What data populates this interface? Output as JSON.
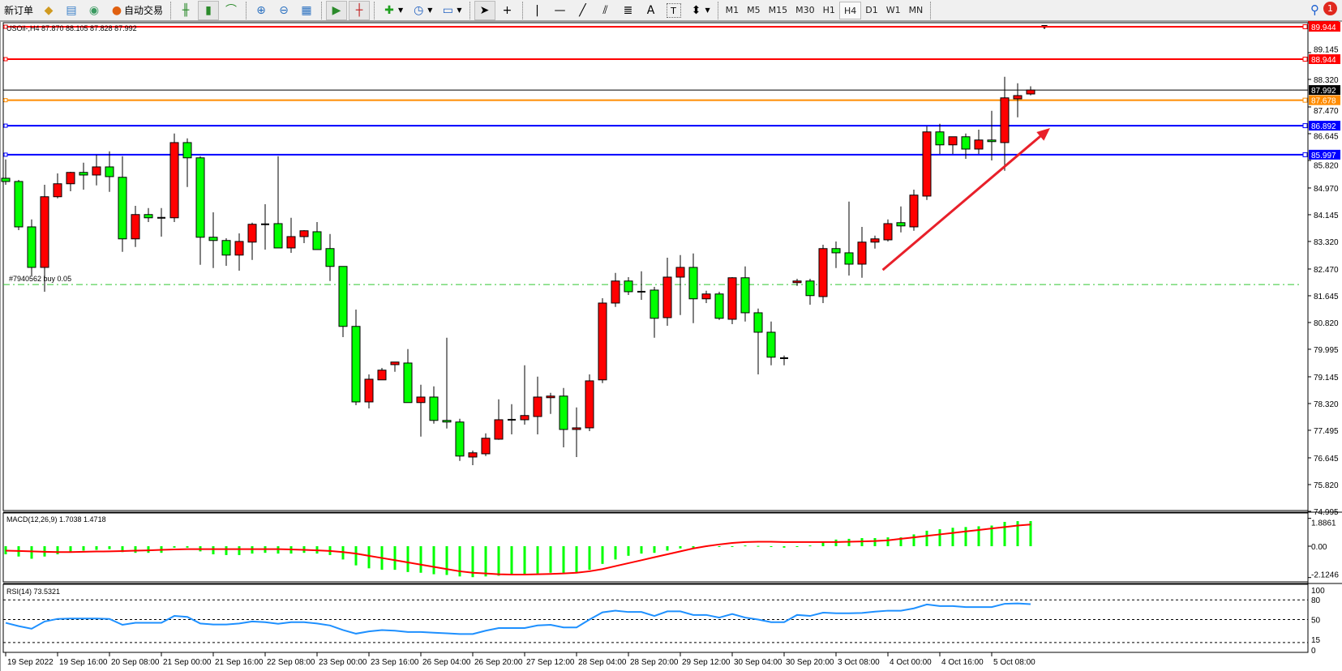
{
  "toolbar": {
    "new_order": "新订单",
    "auto_trading": "自动交易",
    "timeframes": [
      "M1",
      "M5",
      "M15",
      "M30",
      "H1",
      "H4",
      "D1",
      "W1",
      "MN"
    ],
    "active_timeframe": "H4",
    "notification_count": "1",
    "tools_text": [
      "A",
      "T"
    ]
  },
  "chart_header": "USOil-,H4  87.870 88.105 87.828 87.992",
  "order_label": "#7940562 buy 0.05",
  "colors": {
    "bull": "#ff0000",
    "bear": "#00ff00",
    "support": "#0000ff",
    "resistance": "#ff0000",
    "orange": "#ff8c00",
    "order": "#32c832",
    "rsi": "#1e90ff",
    "signal": "#ff0000"
  },
  "chart_data": [
    {
      "type": "candlestick",
      "symbol": "USOil-",
      "timeframe": "H4",
      "ohlc": [
        [
          85.27,
          85.85,
          85.07,
          85.17
        ],
        [
          85.17,
          85.22,
          83.67,
          83.77
        ],
        [
          83.77,
          84.0,
          82.27,
          82.52
        ],
        [
          82.52,
          85.07,
          81.77,
          84.7
        ],
        [
          84.7,
          85.42,
          84.65,
          85.1
        ],
        [
          85.1,
          85.47,
          84.87,
          85.45
        ],
        [
          85.45,
          85.75,
          84.92,
          85.37
        ],
        [
          85.37,
          85.99,
          85.05,
          85.62
        ],
        [
          85.62,
          86.1,
          84.85,
          85.32
        ],
        [
          85.3,
          85.95,
          83.0,
          83.4
        ],
        [
          83.4,
          84.42,
          83.15,
          84.15
        ],
        [
          84.15,
          84.35,
          83.92,
          84.05
        ],
        [
          84.05,
          84.35,
          83.47,
          84.05
        ],
        [
          84.05,
          86.65,
          83.92,
          86.37
        ],
        [
          86.37,
          86.5,
          85.0,
          85.9
        ],
        [
          85.9,
          85.95,
          82.6,
          83.45
        ],
        [
          83.45,
          84.22,
          82.5,
          83.35
        ],
        [
          83.35,
          83.42,
          82.57,
          82.9
        ],
        [
          82.9,
          83.57,
          82.42,
          83.32
        ],
        [
          83.3,
          83.9,
          82.75,
          83.85
        ],
        [
          83.85,
          84.47,
          83.07,
          83.85
        ],
        [
          83.87,
          85.95,
          83.12,
          83.12
        ],
        [
          83.12,
          84.05,
          82.97,
          83.47
        ],
        [
          83.47,
          83.67,
          83.27,
          83.65
        ],
        [
          83.62,
          83.92,
          83.07,
          83.07
        ],
        [
          83.1,
          83.55,
          82.1,
          82.55
        ],
        [
          82.55,
          82.55,
          80.37,
          80.7
        ],
        [
          80.7,
          81.22,
          78.27,
          78.37
        ],
        [
          78.37,
          79.22,
          78.17,
          79.07
        ],
        [
          79.05,
          79.42,
          79.05,
          79.35
        ],
        [
          79.52,
          79.6,
          79.3,
          79.6
        ],
        [
          79.57,
          80.0,
          78.35,
          78.35
        ],
        [
          78.35,
          78.9,
          77.3,
          78.52
        ],
        [
          78.52,
          78.85,
          77.7,
          77.8
        ],
        [
          77.8,
          80.35,
          77.55,
          77.75
        ],
        [
          77.75,
          77.85,
          76.55,
          76.7
        ],
        [
          76.67,
          76.87,
          76.42,
          76.8
        ],
        [
          76.77,
          77.4,
          76.7,
          77.25
        ],
        [
          77.22,
          78.45,
          77.2,
          77.82
        ],
        [
          77.82,
          78.3,
          77.37,
          77.82
        ],
        [
          77.82,
          79.5,
          77.67,
          77.95
        ],
        [
          77.92,
          79.15,
          77.37,
          78.52
        ],
        [
          78.5,
          78.65,
          78.0,
          78.55
        ],
        [
          78.55,
          78.8,
          76.97,
          77.52
        ],
        [
          77.52,
          78.2,
          76.67,
          77.57
        ],
        [
          77.57,
          79.22,
          77.47,
          79.02
        ],
        [
          79.05,
          81.57,
          78.95,
          81.42
        ],
        [
          81.42,
          82.35,
          81.3,
          82.1
        ],
        [
          82.1,
          82.22,
          81.67,
          81.77
        ],
        [
          81.77,
          82.4,
          81.52,
          81.77
        ],
        [
          81.82,
          81.92,
          80.35,
          80.95
        ],
        [
          80.97,
          82.82,
          80.72,
          82.22
        ],
        [
          82.22,
          82.9,
          81.05,
          82.52
        ],
        [
          82.52,
          82.95,
          80.8,
          81.55
        ],
        [
          81.55,
          81.8,
          81.42,
          81.7
        ],
        [
          81.7,
          81.77,
          80.9,
          80.95
        ],
        [
          80.92,
          82.22,
          80.77,
          82.2
        ],
        [
          82.2,
          82.55,
          80.85,
          81.12
        ],
        [
          81.12,
          81.25,
          79.22,
          80.52
        ],
        [
          80.52,
          80.85,
          79.5,
          79.75
        ],
        [
          79.72,
          79.8,
          79.5,
          79.72
        ],
        [
          82.05,
          82.17,
          81.95,
          82.1
        ],
        [
          82.1,
          82.17,
          81.37,
          81.65
        ],
        [
          81.62,
          83.22,
          81.42,
          83.1
        ],
        [
          83.1,
          83.32,
          82.5,
          82.97
        ],
        [
          82.97,
          84.55,
          82.27,
          82.62
        ],
        [
          82.62,
          83.77,
          82.2,
          83.3
        ],
        [
          83.3,
          83.5,
          83.1,
          83.4
        ],
        [
          83.37,
          84.0,
          83.32,
          83.87
        ],
        [
          83.9,
          84.4,
          83.6,
          83.8
        ],
        [
          83.77,
          84.92,
          83.65,
          84.75
        ],
        [
          84.72,
          86.87,
          84.6,
          86.7
        ],
        [
          86.7,
          86.95,
          86.02,
          86.3
        ],
        [
          86.3,
          86.55,
          86.02,
          86.55
        ],
        [
          86.55,
          86.65,
          85.87,
          86.17
        ],
        [
          86.17,
          86.77,
          86.02,
          86.45
        ],
        [
          86.45,
          87.35,
          85.82,
          86.4
        ],
        [
          86.37,
          88.4,
          85.5,
          87.75
        ],
        [
          87.72,
          88.2,
          87.15,
          87.82
        ],
        [
          87.87,
          88.105,
          87.828,
          87.992
        ]
      ],
      "price_ticks": [
        "89.145",
        "88.320",
        "87.470",
        "86.645",
        "85.820",
        "84.970",
        "84.145",
        "83.320",
        "82.470",
        "81.645",
        "80.820",
        "79.995",
        "79.145",
        "78.320",
        "77.495",
        "76.645",
        "75.820",
        "74.995"
      ],
      "price_range": [
        74.995,
        89.944
      ],
      "horizontal_lines": [
        {
          "price": "89.944",
          "color": "#ff0000"
        },
        {
          "price": "88.944",
          "color": "#ff0000"
        },
        {
          "price": "87.992",
          "color": "#000000",
          "bid": true
        },
        {
          "price": "87.678",
          "color": "#ff8c00"
        },
        {
          "price": "86.892",
          "color": "#0000ff"
        },
        {
          "price": "85.997",
          "color": "#0000ff"
        }
      ],
      "order_line_price": 81.99,
      "trend_arrow": {
        "from": [
          67.6,
          82.44
        ],
        "to": [
          80.5,
          86.82
        ],
        "color": "#e8202a"
      },
      "time_labels": [
        {
          "bar": 0,
          "label": "19 Sep 2022"
        },
        {
          "bar": 4,
          "label": "19 Sep 16:00"
        },
        {
          "bar": 8,
          "label": "20 Sep 08:00"
        },
        {
          "bar": 12,
          "label": "21 Sep 00:00"
        },
        {
          "bar": 16,
          "label": "21 Sep 16:00"
        },
        {
          "bar": 20,
          "label": "22 Sep 08:00"
        },
        {
          "bar": 24,
          "label": "23 Sep 00:00"
        },
        {
          "bar": 28,
          "label": "23 Sep 16:00"
        },
        {
          "bar": 32,
          "label": "26 Sep 04:00"
        },
        {
          "bar": 36,
          "label": "26 Sep 20:00"
        },
        {
          "bar": 40,
          "label": "27 Sep 12:00"
        },
        {
          "bar": 44,
          "label": "28 Sep 04:00"
        },
        {
          "bar": 48,
          "label": "28 Sep 20:00"
        },
        {
          "bar": 52,
          "label": "29 Sep 12:00"
        },
        {
          "bar": 56,
          "label": "30 Sep 04:00"
        },
        {
          "bar": 60,
          "label": "30 Sep 20:00"
        },
        {
          "bar": 64,
          "label": "3 Oct 08:00"
        },
        {
          "bar": 68,
          "label": "4 Oct 00:00"
        },
        {
          "bar": 72,
          "label": "4 Oct 16:00"
        },
        {
          "bar": 76,
          "label": "5 Oct 08:00"
        }
      ]
    },
    {
      "type": "bar",
      "title": "MACD(12,26,9) 1.7038 1.4718",
      "ticks": [
        "1.8861",
        "0.00",
        "-2.1246"
      ],
      "range": [
        -2.1246,
        1.8861
      ],
      "macd": [
        -0.55,
        -0.7,
        -0.85,
        -0.7,
        -0.55,
        -0.4,
        -0.3,
        -0.25,
        -0.2,
        -0.4,
        -0.45,
        -0.45,
        -0.45,
        -0.1,
        -0.1,
        -0.35,
        -0.55,
        -0.6,
        -0.6,
        -0.5,
        -0.45,
        -0.5,
        -0.5,
        -0.45,
        -0.5,
        -0.6,
        -0.9,
        -1.3,
        -1.5,
        -1.6,
        -1.6,
        -1.75,
        -1.8,
        -1.9,
        -1.95,
        -2.05,
        -2.1,
        -2.05,
        -2.0,
        -1.95,
        -1.9,
        -1.85,
        -1.8,
        -1.85,
        -1.8,
        -1.6,
        -1.2,
        -0.9,
        -0.65,
        -0.5,
        -0.45,
        -0.3,
        -0.15,
        -0.1,
        -0.05,
        -0.05,
        0.0,
        0.05,
        0.02,
        -0.05,
        -0.1,
        -0.05,
        0.05,
        0.3,
        0.45,
        0.5,
        0.55,
        0.55,
        0.6,
        0.6,
        0.8,
        1.05,
        1.15,
        1.25,
        1.3,
        1.35,
        1.4,
        1.65,
        1.7,
        1.7038
      ],
      "signal": [
        -0.3,
        -0.32,
        -0.35,
        -0.38,
        -0.4,
        -0.4,
        -0.38,
        -0.36,
        -0.35,
        -0.33,
        -0.3,
        -0.28,
        -0.25,
        -0.22,
        -0.2,
        -0.2,
        -0.2,
        -0.2,
        -0.2,
        -0.2,
        -0.2,
        -0.2,
        -0.22,
        -0.25,
        -0.28,
        -0.32,
        -0.4,
        -0.5,
        -0.65,
        -0.8,
        -0.95,
        -1.1,
        -1.25,
        -1.4,
        -1.55,
        -1.7,
        -1.8,
        -1.85,
        -1.9,
        -1.92,
        -1.92,
        -1.9,
        -1.88,
        -1.85,
        -1.8,
        -1.7,
        -1.55,
        -1.35,
        -1.15,
        -0.95,
        -0.75,
        -0.55,
        -0.35,
        -0.15,
        0.0,
        0.12,
        0.22,
        0.28,
        0.3,
        0.3,
        0.28,
        0.28,
        0.28,
        0.28,
        0.28,
        0.3,
        0.32,
        0.35,
        0.4,
        0.5,
        0.6,
        0.7,
        0.8,
        0.9,
        1.0,
        1.1,
        1.2,
        1.3,
        1.4,
        1.4718
      ]
    },
    {
      "type": "line",
      "title": "RSI(14) 73.5321",
      "ticks": [
        "100",
        "80",
        "50",
        "15",
        "0"
      ],
      "levels": [
        80,
        50,
        15
      ],
      "range": [
        0,
        100
      ],
      "values": [
        45,
        40,
        36,
        47,
        51,
        51.5,
        51.5,
        51.5,
        51,
        42,
        45,
        45,
        45,
        55.5,
        54,
        44,
        42.5,
        42.5,
        44,
        47,
        46,
        43.5,
        46,
        46,
        44,
        41,
        34,
        28.5,
        32,
        34,
        33,
        31,
        31,
        30,
        29,
        28,
        28,
        33,
        37,
        37,
        37,
        41,
        42,
        38,
        38,
        50,
        61,
        63.5,
        61.5,
        61.5,
        55.5,
        62.5,
        62.5,
        57,
        57,
        53,
        58.5,
        53,
        50,
        46,
        46,
        57,
        55.5,
        60.5,
        59.5,
        59.5,
        60,
        62,
        63.5,
        63.5,
        67,
        73,
        70.5,
        70.5,
        69,
        69,
        69,
        74,
        74.5,
        73.5321
      ]
    }
  ]
}
